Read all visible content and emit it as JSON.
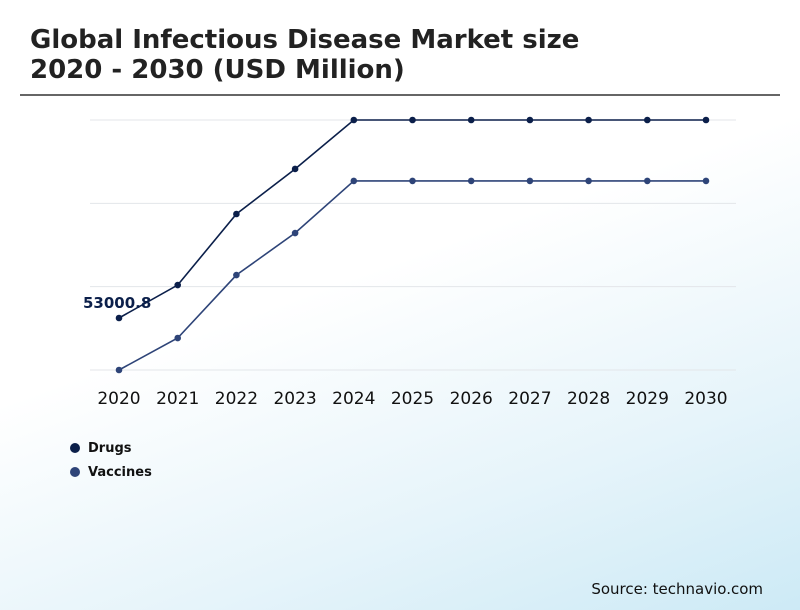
{
  "chart_data": {
    "type": "line",
    "title": "Global Infectious Disease Market size\n2020 - 2030 (USD Million)",
    "title_lines": [
      "Global Infectious Disease Market size",
      "2020 - 2030 (USD Million)"
    ],
    "categories": [
      "2020",
      "2021",
      "2022",
      "2023",
      "2024",
      "2025",
      "2026",
      "2027",
      "2028",
      "2029",
      "2030"
    ],
    "series": [
      {
        "name": "Drugs",
        "color": "#0b1f4a",
        "values": [
          53000.8,
          86600,
          159000,
          204900,
          254800,
          254800,
          254800,
          254800,
          254800,
          254800,
          254800
        ]
      },
      {
        "name": "Vaccines",
        "color": "#2e4478",
        "values": [
          0,
          32600,
          96800,
          139600,
          192700,
          192700,
          192700,
          192700,
          192700,
          192700,
          192700
        ]
      }
    ],
    "data_labels": [
      {
        "series": "Drugs",
        "category": "2020",
        "text": "53000.8"
      }
    ],
    "ylim": [
      0,
      254800
    ],
    "grid": true,
    "legend_placement": "bottom-left",
    "source": "Source: technavio.com"
  }
}
